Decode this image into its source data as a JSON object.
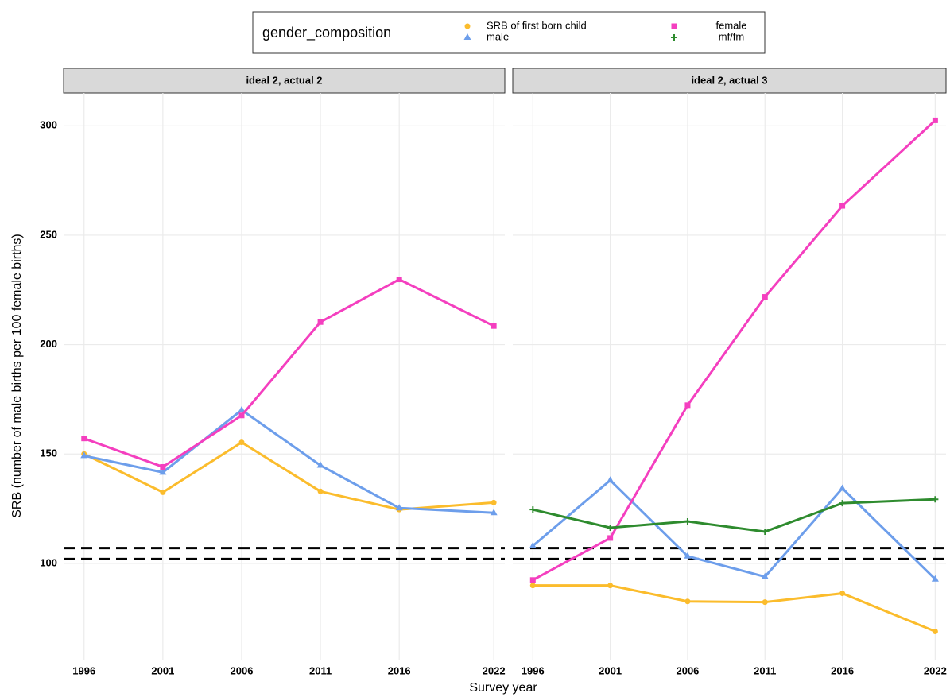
{
  "chart_data": {
    "type": "line",
    "x_label": "Survey year",
    "y_label": "SRB (number of male births per 100 female births)",
    "legend_title": "gender_composition",
    "x": [
      1996,
      2001,
      2006,
      2011,
      2016,
      2022
    ],
    "xlim": [
      1994.7,
      2022.7
    ],
    "xticks": [
      1996,
      2001,
      2006,
      2011,
      2016,
      2022
    ],
    "ylim": [
      56,
      315
    ],
    "yticks": [
      100,
      150,
      200,
      250,
      300
    ],
    "hlines": [
      102,
      107
    ],
    "grid": true,
    "panels": [
      {
        "title": "ideal 2, actual 2",
        "series": [
          {
            "name": "SRB of first born child",
            "color": "#fbbc2c",
            "marker": "circle",
            "values": [
              150,
              132.5,
              155.3,
              132.9,
              124.6,
              127.8
            ]
          },
          {
            "name": "male",
            "color": "#6d9eeb",
            "marker": "triangle",
            "values": [
              149.2,
              141.6,
              170.1,
              144.8,
              125.3,
              123.1
            ]
          },
          {
            "name": "female",
            "color": "#f43fbf",
            "marker": "square",
            "values": [
              157.1,
              144.1,
              167.6,
              210.3,
              229.8,
              208.5
            ]
          }
        ]
      },
      {
        "title": "ideal 2, actual 3",
        "series": [
          {
            "name": "SRB of first born child",
            "color": "#fbbc2c",
            "marker": "circle",
            "values": [
              89.9,
              89.9,
              82.6,
              82.3,
              86.3,
              68.9
            ]
          },
          {
            "name": "male",
            "color": "#6d9eeb",
            "marker": "triangle",
            "values": [
              108,
              138,
              103.3,
              93.9,
              134.3,
              92.8
            ]
          },
          {
            "name": "female",
            "color": "#f43fbf",
            "marker": "square",
            "values": [
              92.4,
              111.6,
              172.3,
              221.8,
              263.4,
              302.5
            ]
          },
          {
            "name": "mf/fm",
            "color": "#2e8b2e",
            "marker": "plus",
            "values": [
              124.6,
              116.3,
              119.2,
              114.5,
              127.5,
              129.3
            ]
          }
        ]
      }
    ]
  }
}
